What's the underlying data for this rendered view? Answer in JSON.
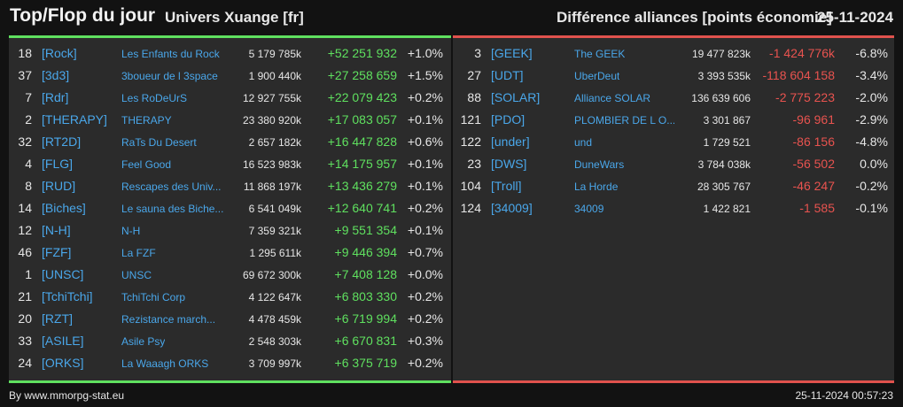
{
  "header": {
    "title": "Top/Flop du jour",
    "universe": "Univers Xuange [fr]",
    "category": "Différence alliances [points économie]",
    "date": "25-11-2024"
  },
  "colors": {
    "positive": "#5fe05f",
    "negative": "#e8534f",
    "tag": "#4aa7ea"
  },
  "top": [
    {
      "rank": "18",
      "tag": "[Rock]",
      "name": "Les Enfants du Rock",
      "points": "5 179 785k",
      "diff": "+52 251 932",
      "pct": "+1.0%"
    },
    {
      "rank": "37",
      "tag": "[3d3]",
      "name": "3boueur de l 3space",
      "points": "1 900 440k",
      "diff": "+27 258 659",
      "pct": "+1.5%"
    },
    {
      "rank": "7",
      "tag": "[Rdr]",
      "name": "Les RoDeUrS",
      "points": "12 927 755k",
      "diff": "+22 079 423",
      "pct": "+0.2%"
    },
    {
      "rank": "2",
      "tag": "[THERAPY]",
      "name": "THERAPY",
      "points": "23 380 920k",
      "diff": "+17 083 057",
      "pct": "+0.1%"
    },
    {
      "rank": "32",
      "tag": "[RT2D]",
      "name": "RaTs Du Desert",
      "points": "2 657 182k",
      "diff": "+16 447 828",
      "pct": "+0.6%"
    },
    {
      "rank": "4",
      "tag": "[FLG]",
      "name": "Feel Good",
      "points": "16 523 983k",
      "diff": "+14 175 957",
      "pct": "+0.1%"
    },
    {
      "rank": "8",
      "tag": "[RUD]",
      "name": "Rescapes des Univ...",
      "points": "11 868 197k",
      "diff": "+13 436 279",
      "pct": "+0.1%"
    },
    {
      "rank": "14",
      "tag": "[Biches]",
      "name": "Le sauna des Biche...",
      "points": "6 541 049k",
      "diff": "+12 640 741",
      "pct": "+0.2%"
    },
    {
      "rank": "12",
      "tag": "[N-H]",
      "name": "N-H",
      "points": "7 359 321k",
      "diff": "+9 551 354",
      "pct": "+0.1%"
    },
    {
      "rank": "46",
      "tag": "[FZF]",
      "name": "La FZF",
      "points": "1 295 611k",
      "diff": "+9 446 394",
      "pct": "+0.7%"
    },
    {
      "rank": "1",
      "tag": "[UNSC]",
      "name": "UNSC",
      "points": "69 672 300k",
      "diff": "+7 408 128",
      "pct": "+0.0%"
    },
    {
      "rank": "21",
      "tag": "[TchiTchi]",
      "name": "TchiTchi Corp",
      "points": "4 122 647k",
      "diff": "+6 803 330",
      "pct": "+0.2%"
    },
    {
      "rank": "20",
      "tag": "[RZT]",
      "name": "Rezistance march...",
      "points": "4 478 459k",
      "diff": "+6 719 994",
      "pct": "+0.2%"
    },
    {
      "rank": "33",
      "tag": "[ASILE]",
      "name": "Asile Psy",
      "points": "2 548 303k",
      "diff": "+6 670 831",
      "pct": "+0.3%"
    },
    {
      "rank": "24",
      "tag": "[ORKS]",
      "name": "La Waaagh ORKS",
      "points": "3 709 997k",
      "diff": "+6 375 719",
      "pct": "+0.2%"
    }
  ],
  "flop": [
    {
      "rank": "3",
      "tag": "[GEEK]",
      "name": "The GEEK",
      "points": "19 477 823k",
      "diff": "-1 424 776k",
      "pct": "-6.8%"
    },
    {
      "rank": "27",
      "tag": "[UDT]",
      "name": "UberDeut",
      "points": "3 393 535k",
      "diff": "-118 604 158",
      "pct": "-3.4%"
    },
    {
      "rank": "88",
      "tag": "[SOLAR]",
      "name": "Alliance SOLAR",
      "points": "136 639 606",
      "diff": "-2 775 223",
      "pct": "-2.0%"
    },
    {
      "rank": "121",
      "tag": "[PDO]",
      "name": "PLOMBIER DE L O...",
      "points": "3 301 867",
      "diff": "-96 961",
      "pct": "-2.9%"
    },
    {
      "rank": "122",
      "tag": "[under]",
      "name": "und",
      "points": "1 729 521",
      "diff": "-86 156",
      "pct": "-4.8%"
    },
    {
      "rank": "23",
      "tag": "[DWS]",
      "name": "DuneWars",
      "points": "3 784 038k",
      "diff": "-56 502",
      "pct": "0.0%"
    },
    {
      "rank": "104",
      "tag": "[Troll]",
      "name": "La Horde",
      "points": "28 305 767",
      "diff": "-46 247",
      "pct": "-0.2%"
    },
    {
      "rank": "124",
      "tag": "[34009]",
      "name": "34009",
      "points": "1 422 821",
      "diff": "-1 585",
      "pct": "-0.1%"
    }
  ],
  "footer": {
    "credit": "By www.mmorpg-stat.eu",
    "generated": "25-11-2024 00:57:23"
  }
}
